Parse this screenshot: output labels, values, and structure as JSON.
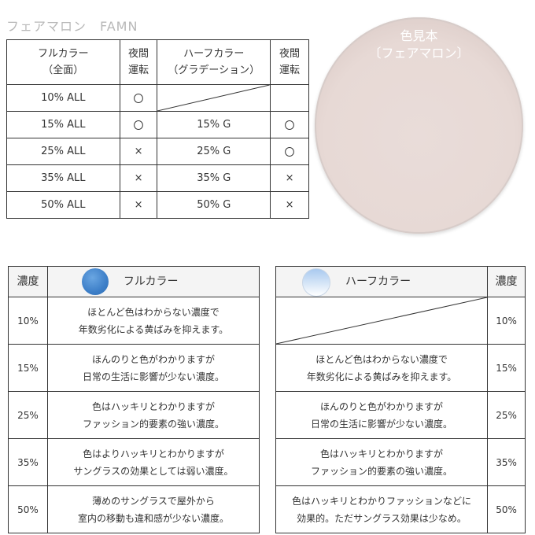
{
  "title": "フェアマロン　FAMN",
  "top_table": {
    "headers": [
      "フルカラー\n（全面）",
      "夜間\n運転",
      "ハーフカラー\n（グラデーション）",
      "夜間\n運転"
    ],
    "header_lines": [
      [
        "フルカラー",
        "（全面）"
      ],
      [
        "夜間",
        "運転"
      ],
      [
        "ハーフカラー",
        "（グラデーション）"
      ],
      [
        "夜間",
        "運転"
      ]
    ],
    "rows": [
      {
        "full": "10% ALL",
        "full_night": "〇",
        "half": "",
        "half_night": ""
      },
      {
        "full": "15% ALL",
        "full_night": "〇",
        "half": "15% G",
        "half_night": "〇"
      },
      {
        "full": "25% ALL",
        "full_night": "×",
        "half": "25% G",
        "half_night": "〇"
      },
      {
        "full": "35% ALL",
        "full_night": "×",
        "half": "35% G",
        "half_night": "×"
      },
      {
        "full": "50% ALL",
        "full_night": "×",
        "half": "50% G",
        "half_night": "×"
      }
    ]
  },
  "swatch": {
    "line1": "色見本",
    "line2": "〔フェアマロン〕",
    "color": "#e7d9d5"
  },
  "full_table": {
    "concentration_header": "濃度",
    "type_header": "フルカラー",
    "rows": [
      {
        "conc": "10%",
        "l1": "ほとんど色はわからない濃度で",
        "l2": "年数劣化による黄ばみを抑えます。"
      },
      {
        "conc": "15%",
        "l1": "ほんのりと色がわかりますが",
        "l2": "日常の生活に影響が少ない濃度。"
      },
      {
        "conc": "25%",
        "l1": "色はハッキリとわかりますが",
        "l2": "ファッション的要素の強い濃度。"
      },
      {
        "conc": "35%",
        "l1": "色はよりハッキリとわかりますが",
        "l2": "サングラスの効果としては弱い濃度。"
      },
      {
        "conc": "50%",
        "l1": "薄めのサングラスで屋外から",
        "l2": "室内の移動も違和感が少ない濃度。"
      }
    ]
  },
  "half_table": {
    "concentration_header": "濃度",
    "type_header": "ハーフカラー",
    "rows": [
      {
        "conc": "10%",
        "l1": "",
        "l2": ""
      },
      {
        "conc": "15%",
        "l1": "ほとんど色はわからない濃度で",
        "l2": "年数劣化による黄ばみを抑えます。"
      },
      {
        "conc": "25%",
        "l1": "ほんのりと色がわかりますが",
        "l2": "日常の生活に影響が少ない濃度。"
      },
      {
        "conc": "35%",
        "l1": "色はハッキリとわかりますが",
        "l2": "ファッション的要素の強い濃度。"
      },
      {
        "conc": "50%",
        "l1": "色はハッキリとわかりファッションなどに",
        "l2": "効果的。ただサングラス効果は少なめ。"
      }
    ]
  }
}
